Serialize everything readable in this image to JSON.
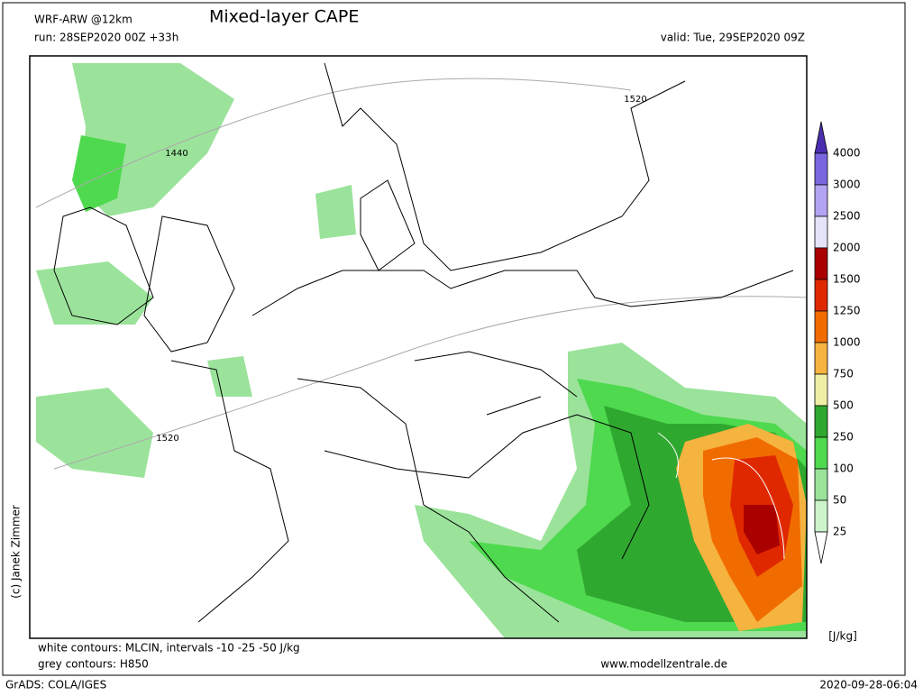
{
  "header": {
    "model": "WRF-ARW @12km",
    "title": "Mixed-layer CAPE",
    "run": "run: 28SEP2020 00Z +33h",
    "valid": "valid: Tue, 29SEP2020 09Z"
  },
  "map": {
    "credit": "(c) Janek Zimmer",
    "contour_labels": [
      "1520",
      "1440",
      "1520"
    ]
  },
  "colorbar": {
    "levels": [
      4000,
      3000,
      2500,
      2000,
      1500,
      1250,
      1000,
      750,
      500,
      250,
      100,
      50,
      25
    ],
    "colors": [
      "#4b2fb0",
      "#7a66de",
      "#b4a3f2",
      "#e4e4f8",
      "#aa0000",
      "#e02800",
      "#f06c00",
      "#f5b33f",
      "#efefa6",
      "#2fa82f",
      "#4fd94f",
      "#9be39b",
      "#cdf5cd",
      "#ffffff"
    ],
    "unit": "[J/kg]"
  },
  "footer": {
    "white_contours": "white contours: MLCIN, intervals -10 -25 -50 J/kg",
    "grey_contours": "grey contours: H850",
    "website": "www.modellzentrale.de",
    "software": "GrADS: COLA/IGES",
    "timestamp": "2020-09-28-06:04"
  }
}
